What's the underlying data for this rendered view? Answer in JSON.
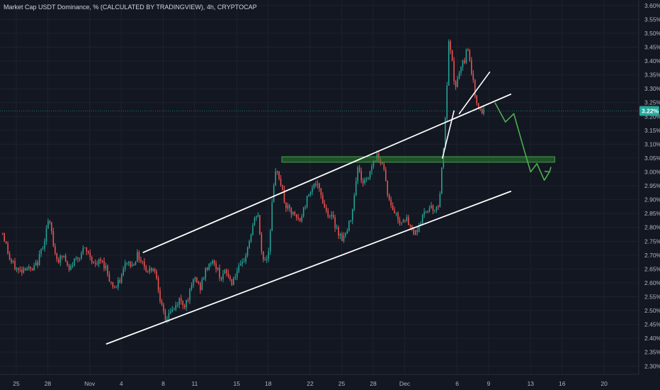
{
  "header": {
    "title": "Market Cap USDT Dominance, % (CALCULATED BY TRADINGVIEW), 4h, CRYPTOCAP"
  },
  "colors": {
    "background": "#131722",
    "up_candle": "#26a69a",
    "down_candle": "#ef5350",
    "drawing_line": "#ffffff",
    "zone_fill": "#2e7d32",
    "projection_path": "#4caf50",
    "price_tag": "#26a69a",
    "grid": "#1e222d"
  },
  "chart_data": {
    "type": "candlestick",
    "title": "Market Cap USDT Dominance, % (CALCULATED BY TRADINGVIEW), 4h, CRYPTOCAP",
    "timeframe": "4h",
    "ylim": [
      2.27,
      3.62
    ],
    "y_scale": "linear",
    "y_ticks": [
      "3.60%",
      "3.55%",
      "3.50%",
      "3.45%",
      "3.40%",
      "3.35%",
      "3.30%",
      "3.25%",
      "3.20%",
      "3.15%",
      "3.10%",
      "3.05%",
      "3.00%",
      "2.95%",
      "2.90%",
      "2.85%",
      "2.80%",
      "2.75%",
      "2.70%",
      "2.65%",
      "2.60%",
      "2.55%",
      "2.50%",
      "2.45%",
      "2.40%",
      "2.35%",
      "2.30%"
    ],
    "y_tick_values": [
      3.6,
      3.55,
      3.5,
      3.45,
      3.4,
      3.35,
      3.3,
      3.25,
      3.2,
      3.15,
      3.1,
      3.05,
      3.0,
      2.95,
      2.9,
      2.85,
      2.8,
      2.75,
      2.7,
      2.65,
      2.6,
      2.55,
      2.5,
      2.45,
      2.4,
      2.35,
      2.3
    ],
    "x_ticks": [
      {
        "label": "25",
        "t": 0
      },
      {
        "label": "28",
        "t": 3
      },
      {
        "label": "Nov",
        "t": 7
      },
      {
        "label": "4",
        "t": 10
      },
      {
        "label": "8",
        "t": 14
      },
      {
        "label": "11",
        "t": 17
      },
      {
        "label": "15",
        "t": 21
      },
      {
        "label": "18",
        "t": 24
      },
      {
        "label": "22",
        "t": 28
      },
      {
        "label": "25",
        "t": 31
      },
      {
        "label": "28",
        "t": 34
      },
      {
        "label": "Dec",
        "t": 37
      },
      {
        "label": "6",
        "t": 42
      },
      {
        "label": "9",
        "t": 45
      },
      {
        "label": "13",
        "t": 49
      },
      {
        "label": "16",
        "t": 52
      },
      {
        "label": "20",
        "t": 56
      }
    ],
    "x_range_days": [
      -1.55,
      59.3
    ],
    "last_price": "3.22%",
    "last_value": 3.22,
    "anchors": [
      [
        -1.3,
        2.78
      ],
      [
        -1.0,
        2.74
      ],
      [
        -0.6,
        2.68
      ],
      [
        -0.2,
        2.66
      ],
      [
        0.3,
        2.64
      ],
      [
        0.9,
        2.66
      ],
      [
        1.5,
        2.64
      ],
      [
        2.1,
        2.68
      ],
      [
        2.7,
        2.76
      ],
      [
        3.0,
        2.82
      ],
      [
        3.3,
        2.8
      ],
      [
        3.6,
        2.72
      ],
      [
        4.0,
        2.68
      ],
      [
        4.5,
        2.7
      ],
      [
        5.0,
        2.64
      ],
      [
        5.5,
        2.68
      ],
      [
        6.0,
        2.7
      ],
      [
        6.5,
        2.72
      ],
      [
        7.0,
        2.7
      ],
      [
        7.5,
        2.66
      ],
      [
        8.0,
        2.68
      ],
      [
        8.5,
        2.66
      ],
      [
        9.0,
        2.6
      ],
      [
        9.5,
        2.58
      ],
      [
        10.0,
        2.62
      ],
      [
        10.5,
        2.68
      ],
      [
        11.0,
        2.66
      ],
      [
        11.5,
        2.7
      ],
      [
        12.0,
        2.68
      ],
      [
        12.5,
        2.64
      ],
      [
        13.0,
        2.66
      ],
      [
        13.4,
        2.62
      ],
      [
        13.8,
        2.52
      ],
      [
        14.2,
        2.46
      ],
      [
        14.6,
        2.5
      ],
      [
        15.0,
        2.5
      ],
      [
        15.5,
        2.54
      ],
      [
        16.0,
        2.52
      ],
      [
        16.5,
        2.56
      ],
      [
        17.0,
        2.62
      ],
      [
        17.5,
        2.58
      ],
      [
        18.0,
        2.64
      ],
      [
        18.5,
        2.68
      ],
      [
        19.0,
        2.66
      ],
      [
        19.5,
        2.62
      ],
      [
        20.0,
        2.64
      ],
      [
        20.5,
        2.6
      ],
      [
        21.0,
        2.64
      ],
      [
        21.5,
        2.66
      ],
      [
        22.0,
        2.72
      ],
      [
        22.5,
        2.8
      ],
      [
        23.0,
        2.86
      ],
      [
        23.3,
        2.72
      ],
      [
        23.6,
        2.68
      ],
      [
        24.0,
        2.7
      ],
      [
        24.4,
        2.9
      ],
      [
        24.8,
        3.02
      ],
      [
        25.2,
        2.96
      ],
      [
        25.6,
        2.88
      ],
      [
        26.0,
        2.86
      ],
      [
        26.5,
        2.84
      ],
      [
        27.0,
        2.82
      ],
      [
        27.5,
        2.88
      ],
      [
        28.0,
        2.94
      ],
      [
        28.5,
        2.96
      ],
      [
        29.0,
        2.92
      ],
      [
        29.5,
        2.86
      ],
      [
        30.0,
        2.84
      ],
      [
        30.5,
        2.8
      ],
      [
        31.0,
        2.76
      ],
      [
        31.5,
        2.78
      ],
      [
        32.0,
        2.86
      ],
      [
        32.5,
        3.02
      ],
      [
        33.0,
        2.96
      ],
      [
        33.5,
        2.98
      ],
      [
        34.0,
        3.04
      ],
      [
        34.5,
        3.06
      ],
      [
        35.0,
        3.02
      ],
      [
        35.3,
        2.94
      ],
      [
        35.6,
        2.88
      ],
      [
        36.0,
        2.86
      ],
      [
        36.5,
        2.82
      ],
      [
        37.0,
        2.84
      ],
      [
        37.5,
        2.8
      ],
      [
        38.0,
        2.78
      ],
      [
        38.5,
        2.82
      ],
      [
        39.0,
        2.86
      ],
      [
        39.5,
        2.88
      ],
      [
        40.0,
        2.86
      ],
      [
        40.3,
        2.9
      ],
      [
        40.6,
        3.04
      ],
      [
        40.9,
        3.2
      ],
      [
        41.2,
        3.46
      ],
      [
        41.5,
        3.4
      ],
      [
        41.8,
        3.3
      ],
      [
        42.1,
        3.34
      ],
      [
        42.4,
        3.38
      ],
      [
        42.7,
        3.4
      ],
      [
        43.0,
        3.46
      ],
      [
        43.3,
        3.38
      ],
      [
        43.6,
        3.3
      ],
      [
        44.0,
        3.24
      ],
      [
        44.3,
        3.2
      ],
      [
        44.6,
        3.22
      ]
    ],
    "drawings": {
      "channel_upper": [
        [
          12.1,
          2.71
        ],
        [
          47.1,
          3.28
        ]
      ],
      "channel_lower": [
        [
          8.6,
          2.38
        ],
        [
          47.1,
          2.93
        ]
      ],
      "wedge_line": [
        [
          42.2,
          3.21
        ],
        [
          45.1,
          3.36
        ]
      ],
      "rising_line": [
        [
          40.6,
          3.05
        ],
        [
          41.7,
          3.22
        ]
      ],
      "resistance_zone": {
        "x": [
          25.3,
          51.3
        ],
        "y": [
          3.035,
          3.055
        ]
      },
      "projection_path": [
        [
          45.6,
          3.25
        ],
        [
          46.6,
          3.18
        ],
        [
          47.4,
          3.21
        ],
        [
          48.3,
          3.09
        ],
        [
          49.0,
          3.0
        ],
        [
          49.6,
          3.03
        ],
        [
          50.3,
          2.97
        ],
        [
          50.8,
          3.0
        ]
      ]
    }
  }
}
